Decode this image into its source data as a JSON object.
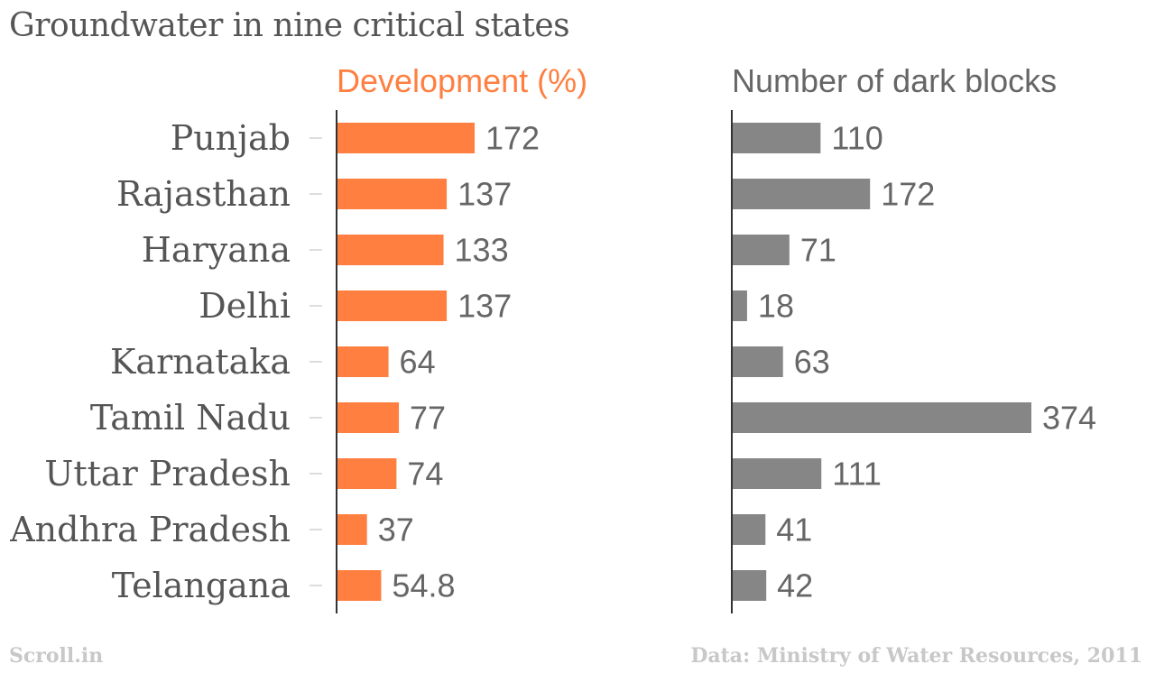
{
  "footer": {
    "source": "Scroll.in",
    "credit": "Data: Ministry of Water Resources, 2011"
  },
  "colors": {
    "development": "#ff7f41",
    "dark_blocks": "#868686",
    "text": "#555555"
  },
  "chart_data": {
    "type": "bar",
    "orientation": "horizontal",
    "title": "Groundwater in nine critical states",
    "categories": [
      "Punjab",
      "Rajasthan",
      "Haryana",
      "Delhi",
      "Karnataka",
      "Tamil Nadu",
      "Uttar Pradesh",
      "Andhra Pradesh",
      "Telangana"
    ],
    "series": [
      {
        "name": "Development (%)",
        "values": [
          172,
          137,
          133,
          137,
          64,
          77,
          74,
          37,
          54.8
        ],
        "labels": [
          "172",
          "137",
          "133",
          "137",
          "64",
          "77",
          "74",
          "37",
          "54.8"
        ],
        "color": "#ff7f41",
        "xlim": [
          0,
          172
        ]
      },
      {
        "name": "Number of dark blocks",
        "values": [
          110,
          172,
          71,
          18,
          63,
          374,
          111,
          41,
          42
        ],
        "labels": [
          "110",
          "172",
          "71",
          "18",
          "63",
          "374",
          "111",
          "41",
          "42"
        ],
        "color": "#868686",
        "xlim": [
          0,
          374
        ]
      }
    ],
    "grid": false,
    "legend": "none"
  }
}
